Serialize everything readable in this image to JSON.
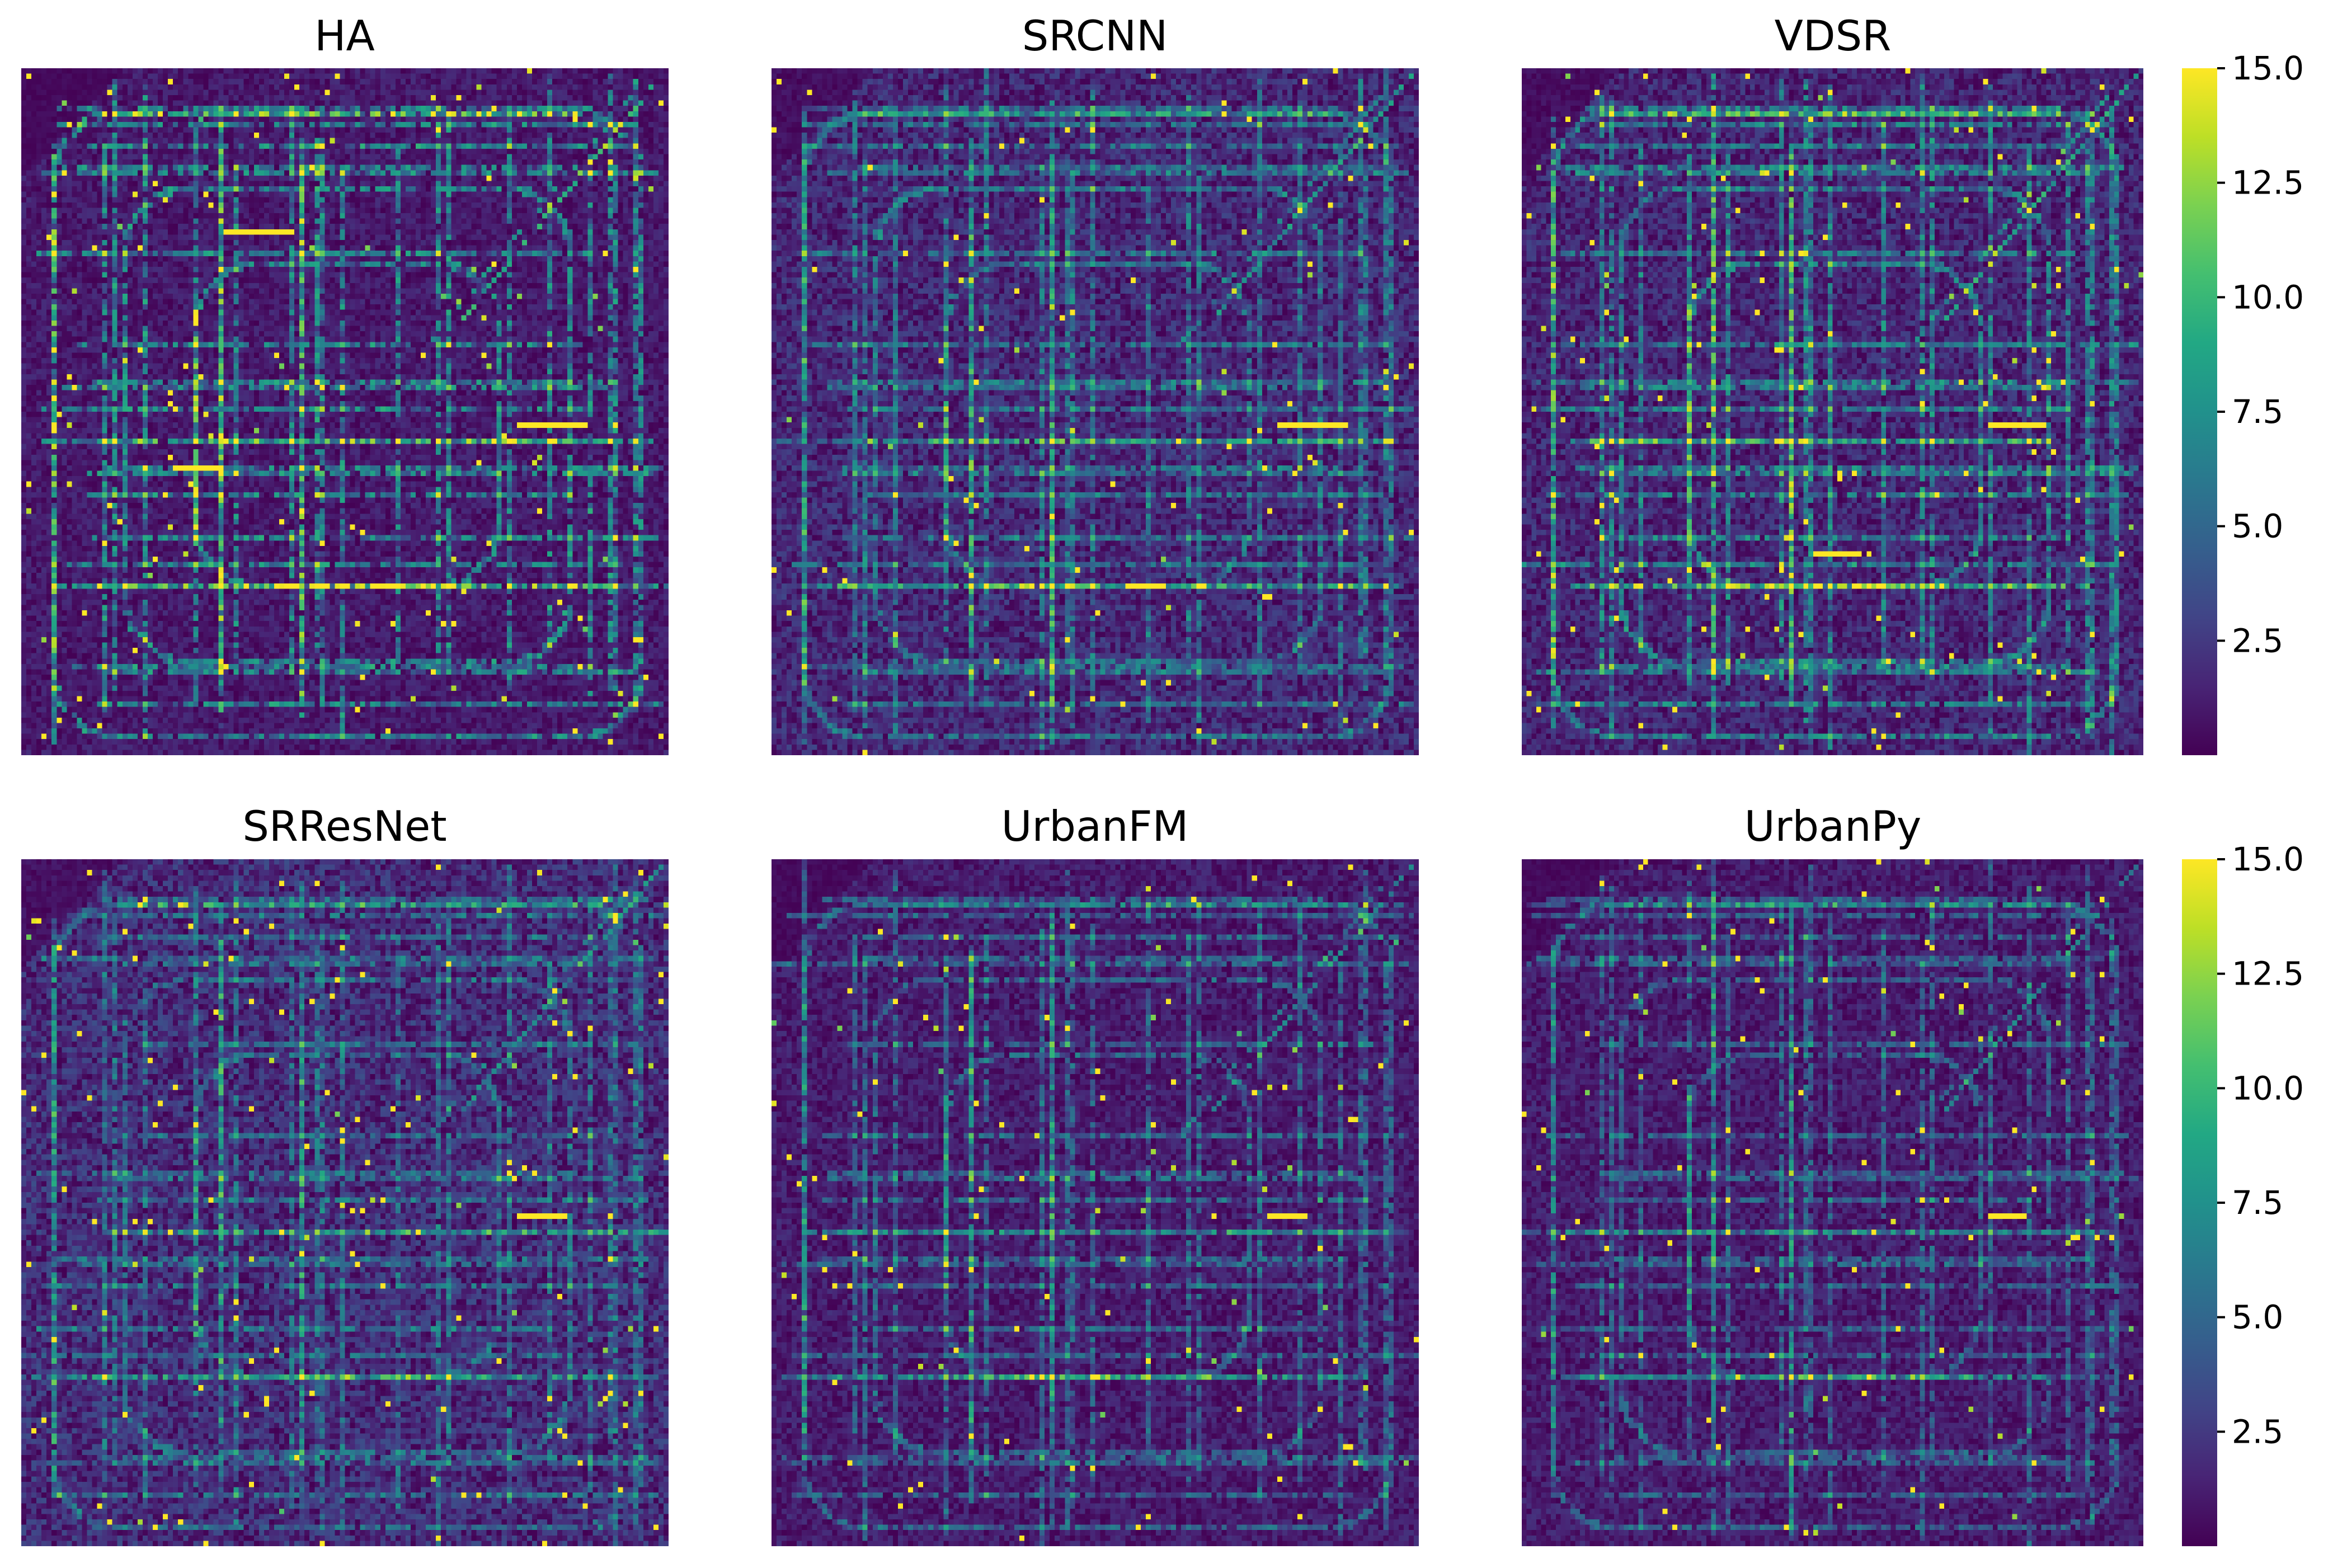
{
  "chart_data": {
    "type": "heatmap",
    "layout": "2x3 grid of heatmaps with shared color scale",
    "panels": [
      {
        "title": "HA"
      },
      {
        "title": "SRCNN"
      },
      {
        "title": "VDSR"
      },
      {
        "title": "SRResNet"
      },
      {
        "title": "UrbanFM"
      },
      {
        "title": "UrbanPy"
      }
    ],
    "colorscale": "viridis",
    "colorbar": {
      "range": [
        0,
        15.0
      ],
      "ticks": [
        2.5,
        5.0,
        7.5,
        10.0,
        12.5,
        15.0
      ],
      "tick_labels": [
        "2.5",
        "5.0",
        "7.5",
        "10.0",
        "12.5",
        "15.0"
      ]
    },
    "axes_visible": false
  }
}
